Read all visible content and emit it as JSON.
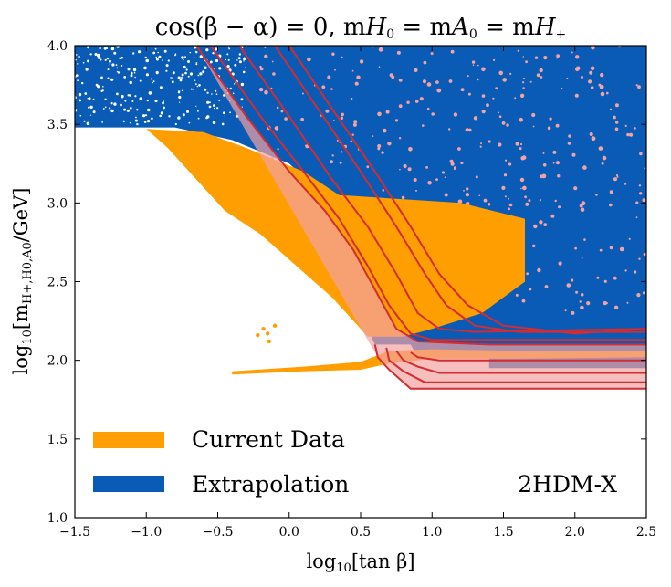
{
  "chart_data": {
    "type": "scatter",
    "title": "cos(β − α) = 0, m_H⁰ = m_A⁰ = m_H⁺",
    "xlabel": "log₁₀[tan β]",
    "ylabel": "log₁₀[m_{H⁺,H⁰,A⁰}/GeV]",
    "xlim": [
      -1.5,
      2.5
    ],
    "ylim": [
      1.0,
      4.0
    ],
    "xticks": [
      -1.5,
      -1.0,
      -0.5,
      0.0,
      0.5,
      1.0,
      1.5,
      2.0,
      2.5
    ],
    "xtick_labels": [
      "−1.5",
      "−1.0",
      "−0.5",
      "0.0",
      "0.5",
      "1.0",
      "1.5",
      "2.0",
      "2.5"
    ],
    "yticks": [
      1.0,
      1.5,
      2.0,
      2.5,
      3.0,
      3.5,
      4.0
    ],
    "ytick_labels": [
      "1.0",
      "1.5",
      "2.0",
      "2.5",
      "3.0",
      "3.5",
      "4.0"
    ],
    "annotation": "2HDM-X",
    "colors": {
      "current": "#FF9E00",
      "extrapolation": "#0A5BB5",
      "contour": "#D12D33",
      "contour_fill": "#F4A2A3"
    },
    "series": [
      {
        "name": "Extrapolation",
        "legend": "Extrapolation",
        "region_upper": [
          [
            -1.5,
            4.0
          ],
          [
            2.5,
            4.0
          ],
          [
            2.5,
            1.95
          ],
          [
            1.4,
            1.95
          ],
          [
            1.4,
            2.02
          ],
          [
            0.9,
            2.02
          ],
          [
            0.85,
            2.1
          ],
          [
            0.6,
            2.1
          ],
          [
            0.55,
            2.2
          ],
          [
            0.6,
            2.6
          ],
          [
            0.55,
            2.8
          ],
          [
            0.3,
            3.0
          ],
          [
            0.0,
            3.25
          ],
          [
            -0.4,
            3.4
          ],
          [
            -0.8,
            3.48
          ],
          [
            -1.5,
            3.48
          ]
        ]
      },
      {
        "name": "Current Data",
        "legend": "Current Data",
        "region_band": [
          [
            -1.0,
            3.47
          ],
          [
            -0.6,
            3.45
          ],
          [
            -0.3,
            3.35
          ],
          [
            0.1,
            3.2
          ],
          [
            0.35,
            3.05
          ],
          [
            0.7,
            3.03
          ],
          [
            1.2,
            3.0
          ],
          [
            1.65,
            2.9
          ],
          [
            1.65,
            2.5
          ],
          [
            1.35,
            2.3
          ],
          [
            1.0,
            2.2
          ],
          [
            0.8,
            2.15
          ],
          [
            0.55,
            2.15
          ],
          [
            0.3,
            2.4
          ],
          [
            0.05,
            2.6
          ],
          [
            -0.2,
            2.8
          ],
          [
            -0.45,
            2.95
          ],
          [
            -0.65,
            3.15
          ],
          [
            -0.85,
            3.35
          ]
        ],
        "region_low_strip": [
          [
            -0.4,
            1.93
          ],
          [
            0.1,
            1.96
          ],
          [
            0.5,
            1.99
          ],
          [
            0.7,
            2.06
          ],
          [
            1.0,
            2.07
          ],
          [
            1.6,
            2.06
          ],
          [
            2.5,
            2.06
          ],
          [
            2.5,
            2.02
          ],
          [
            1.6,
            2.01
          ],
          [
            1.0,
            2.01
          ],
          [
            0.7,
            1.98
          ],
          [
            0.5,
            1.94
          ],
          [
            0.1,
            1.93
          ],
          [
            -0.4,
            1.91
          ]
        ],
        "scatter_points": [
          [
            -0.18,
            2.2
          ],
          [
            -0.15,
            2.17
          ],
          [
            -0.22,
            2.16
          ],
          [
            -0.14,
            2.12
          ],
          [
            -0.1,
            2.22
          ],
          [
            -0.6,
            3.3
          ],
          [
            -0.7,
            3.38
          ],
          [
            -0.45,
            3.27
          ]
        ]
      }
    ],
    "contours": [
      {
        "level": 1,
        "points": [
          [
            -0.65,
            4.0
          ],
          [
            -0.3,
            3.55
          ],
          [
            0.0,
            3.2
          ],
          [
            0.25,
            2.95
          ],
          [
            0.45,
            2.7
          ],
          [
            0.6,
            2.45
          ],
          [
            0.75,
            2.2
          ],
          [
            0.9,
            2.12
          ],
          [
            1.4,
            2.1
          ],
          [
            2.5,
            2.1
          ]
        ]
      },
      {
        "level": 2,
        "points": [
          [
            -0.55,
            4.0
          ],
          [
            -0.2,
            3.55
          ],
          [
            0.1,
            3.2
          ],
          [
            0.35,
            2.9
          ],
          [
            0.55,
            2.6
          ],
          [
            0.7,
            2.35
          ],
          [
            0.85,
            2.17
          ],
          [
            1.0,
            2.13
          ],
          [
            2.5,
            2.13
          ]
        ]
      },
      {
        "level": 3,
        "points": [
          [
            -0.35,
            4.0
          ],
          [
            0.0,
            3.55
          ],
          [
            0.3,
            3.15
          ],
          [
            0.55,
            2.85
          ],
          [
            0.75,
            2.55
          ],
          [
            0.9,
            2.3
          ],
          [
            1.05,
            2.2
          ],
          [
            1.3,
            2.18
          ],
          [
            2.5,
            2.2
          ]
        ]
      },
      {
        "level": 4,
        "points": [
          [
            -0.1,
            4.0
          ],
          [
            0.2,
            3.6
          ],
          [
            0.5,
            3.2
          ],
          [
            0.75,
            2.85
          ],
          [
            0.95,
            2.55
          ],
          [
            1.1,
            2.35
          ],
          [
            1.3,
            2.22
          ],
          [
            1.6,
            2.18
          ],
          [
            2.5,
            2.18
          ]
        ]
      },
      {
        "level": 5,
        "points": [
          [
            0.0,
            4.0
          ],
          [
            0.3,
            3.6
          ],
          [
            0.6,
            3.2
          ],
          [
            0.85,
            2.85
          ],
          [
            1.05,
            2.55
          ],
          [
            1.25,
            2.35
          ],
          [
            1.5,
            2.22
          ],
          [
            2.0,
            2.17
          ],
          [
            2.5,
            2.2
          ]
        ]
      }
    ],
    "lower_contours": [
      {
        "level": 1,
        "points": [
          [
            0.6,
            2.1
          ],
          [
            0.62,
            2.02
          ],
          [
            0.7,
            1.94
          ],
          [
            0.85,
            1.82
          ],
          [
            2.5,
            1.82
          ]
        ]
      },
      {
        "level": 2,
        "points": [
          [
            0.68,
            2.08
          ],
          [
            0.7,
            2.0
          ],
          [
            0.8,
            1.93
          ],
          [
            0.95,
            1.86
          ],
          [
            2.5,
            1.86
          ]
        ]
      },
      {
        "level": 3,
        "points": [
          [
            0.75,
            2.06
          ],
          [
            0.8,
            2.0
          ],
          [
            0.9,
            1.96
          ],
          [
            1.05,
            1.92
          ],
          [
            2.5,
            1.92
          ]
        ]
      },
      {
        "level": 4,
        "points": [
          [
            0.85,
            2.05
          ],
          [
            0.9,
            2.02
          ],
          [
            1.05,
            2.0
          ],
          [
            2.5,
            2.0
          ]
        ]
      }
    ]
  }
}
